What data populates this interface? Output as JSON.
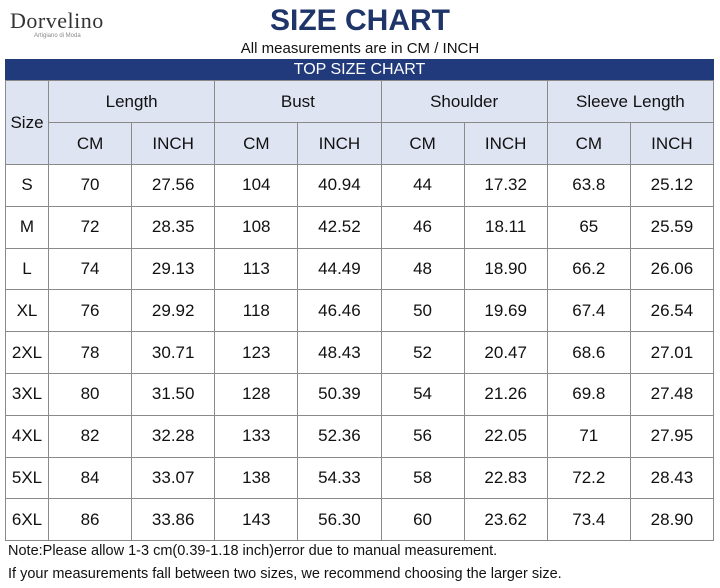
{
  "header": {
    "logo": "Dorvelino",
    "tagline": "Artigiano di Moda",
    "title": "SIZE CHART",
    "subtitle": "All measurements are in CM / INCH",
    "banner": "TOP SIZE CHART"
  },
  "table": {
    "size_label": "Size",
    "groups": [
      "Length",
      "Bust",
      "Shoulder",
      "Sleeve Length"
    ],
    "units": [
      "CM",
      "INCH",
      "CM",
      "INCH",
      "CM",
      "INCH",
      "CM",
      "INCH"
    ],
    "rows": [
      [
        "S",
        "70",
        "27.56",
        "104",
        "40.94",
        "44",
        "17.32",
        "63.8",
        "25.12"
      ],
      [
        "M",
        "72",
        "28.35",
        "108",
        "42.52",
        "46",
        "18.11",
        "65",
        "25.59"
      ],
      [
        "L",
        "74",
        "29.13",
        "113",
        "44.49",
        "48",
        "18.90",
        "66.2",
        "26.06"
      ],
      [
        "XL",
        "76",
        "29.92",
        "118",
        "46.46",
        "50",
        "19.69",
        "67.4",
        "26.54"
      ],
      [
        "2XL",
        "78",
        "30.71",
        "123",
        "48.43",
        "52",
        "20.47",
        "68.6",
        "27.01"
      ],
      [
        "3XL",
        "80",
        "31.50",
        "128",
        "50.39",
        "54",
        "21.26",
        "69.8",
        "27.48"
      ],
      [
        "4XL",
        "82",
        "32.28",
        "133",
        "52.36",
        "56",
        "22.05",
        "71",
        "27.95"
      ],
      [
        "5XL",
        "84",
        "33.07",
        "138",
        "54.33",
        "58",
        "22.83",
        "72.2",
        "28.43"
      ],
      [
        "6XL",
        "86",
        "33.86",
        "143",
        "56.30",
        "60",
        "23.62",
        "73.4",
        "28.90"
      ]
    ]
  },
  "notes": [
    "Note:Please allow 1-3 cm(0.39-1.18 inch)error due to manual measurement.",
    "If your measurements fall between two sizes, we recommend choosing the larger size."
  ]
}
